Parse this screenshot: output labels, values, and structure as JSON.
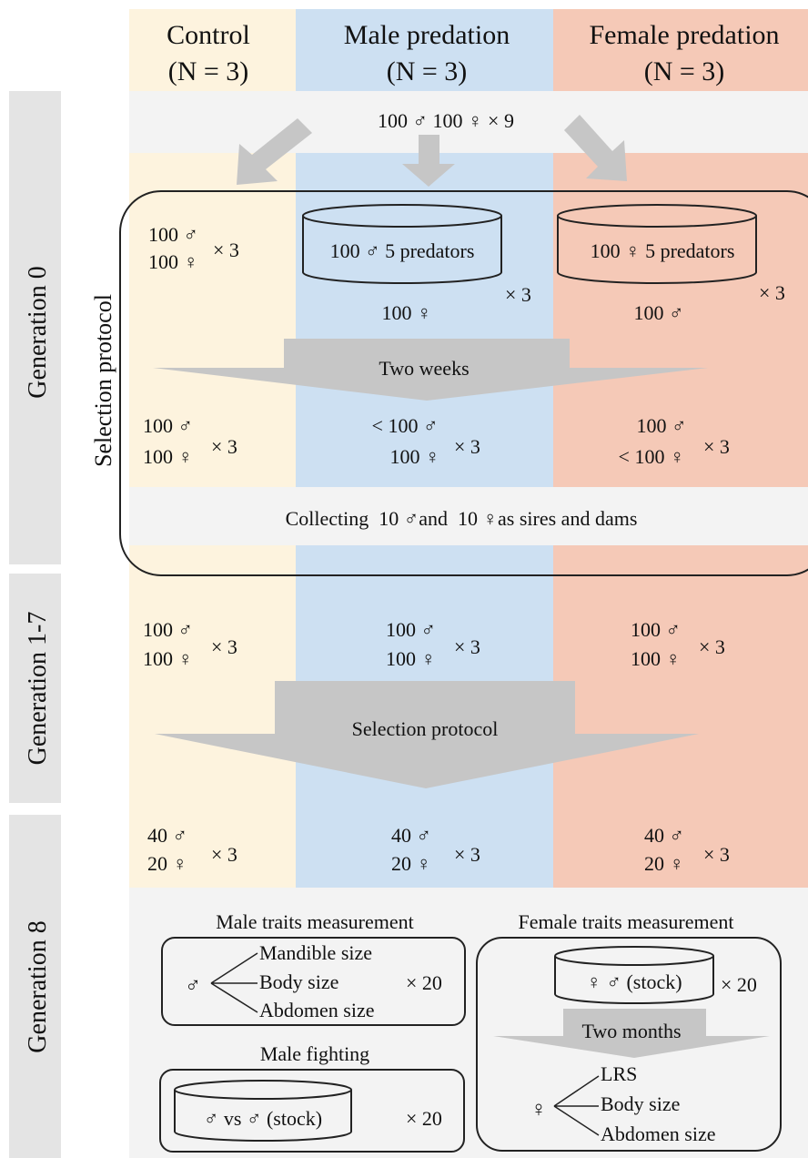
{
  "columns": {
    "control": {
      "title": "Control",
      "n": "(N = 3)"
    },
    "male": {
      "title": "Male predation",
      "n": "(N = 3)"
    },
    "female": {
      "title": "Female predation",
      "n": "(N = 3)"
    }
  },
  "start": {
    "text": "100 ♂ 100 ♀ × 9"
  },
  "generations": {
    "g0": "Generation 0",
    "g17": "Generation 1-7",
    "g8": "Generation 8"
  },
  "selection_protocol_label": "Selection protocol",
  "g0": {
    "control_top": {
      "line1": "100 ♂",
      "line2": "100 ♀",
      "times": "× 3"
    },
    "male_tank": "100 ♂ 5 predators",
    "male_times": "× 3",
    "male_below": "100 ♀",
    "female_tank": "100 ♀ 5 predators",
    "female_times": "× 3",
    "female_below": "100 ♂",
    "arrow_label": "Two weeks",
    "control_after": {
      "line1": "100 ♂",
      "line2": "100 ♀",
      "times": "× 3"
    },
    "male_after": {
      "line1": "< 100 ♂",
      "line2": "100 ♀",
      "times": "× 3"
    },
    "female_after": {
      "line1": "100 ♂",
      "line2": "< 100 ♀",
      "times": "× 3"
    },
    "collecting": "Collecting  10 ♂and  10 ♀as sires and dams"
  },
  "g17": {
    "control": {
      "line1": "100 ♂",
      "line2": "100 ♀",
      "times": "× 3"
    },
    "male": {
      "line1": "100 ♂",
      "line2": "100 ♀",
      "times": "× 3"
    },
    "female": {
      "line1": "100 ♂",
      "line2": "100 ♀",
      "times": "× 3"
    },
    "arrow_label": "Selection protocol",
    "control_out": {
      "line1": "40 ♂",
      "line2": "20 ♀",
      "times": "× 3"
    },
    "male_out": {
      "line1": "40 ♂",
      "line2": "20 ♀",
      "times": "× 3"
    },
    "female_out": {
      "line1": "40 ♂",
      "line2": "20 ♀",
      "times": "× 3"
    }
  },
  "g8": {
    "male_traits_title": "Male traits measurement",
    "male_symbol": "♂",
    "male_traits": [
      "Mandible size",
      "Body size",
      "Abdomen size"
    ],
    "male_traits_times": "× 20",
    "male_fighting_title": "Male fighting",
    "fighting_tank": "♂ vs ♂ (stock)",
    "fighting_times": "× 20",
    "female_traits_title": "Female traits measurement",
    "female_tank": "♀ ♂ (stock)",
    "female_tank_times": "× 20",
    "female_arrow_label": "Two months",
    "female_symbol": "♀",
    "female_traits": [
      "LRS",
      "Body size",
      "Abdomen size"
    ]
  },
  "colors": {
    "control": "#fdf3de",
    "male": "#cde0f2",
    "female": "#f5c9b7",
    "band": "#f3f3f3",
    "gen_sidebar": "#e4e4e4",
    "arrow": "#c6c6c6"
  }
}
